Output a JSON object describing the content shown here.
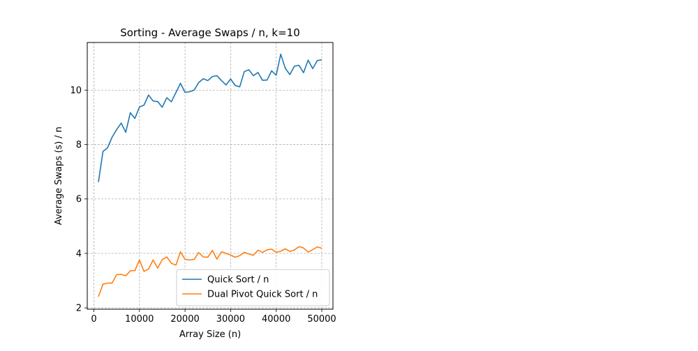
{
  "chart_data": {
    "type": "line",
    "title": "Sorting - Average Swaps / n, k=10",
    "xlabel": "Array Size (n)",
    "ylabel": "Average Swaps (s) / n",
    "xlim": [
      -1450,
      52450
    ],
    "ylim": [
      1.95,
      11.75
    ],
    "xticks": [
      0,
      10000,
      20000,
      30000,
      40000,
      50000
    ],
    "yticks": [
      2,
      4,
      6,
      8,
      10
    ],
    "grid": true,
    "legend_position": "lower right",
    "x": [
      1000,
      2000,
      3000,
      4000,
      5000,
      6000,
      7000,
      8000,
      9000,
      10000,
      11000,
      12000,
      13000,
      14000,
      15000,
      16000,
      17000,
      18000,
      19000,
      20000,
      21000,
      22000,
      23000,
      24000,
      25000,
      26000,
      27000,
      28000,
      29000,
      30000,
      31000,
      32000,
      33000,
      34000,
      35000,
      36000,
      37000,
      38000,
      39000,
      40000,
      41000,
      42000,
      43000,
      44000,
      45000,
      46000,
      47000,
      48000,
      49000,
      50000
    ],
    "series": [
      {
        "name": "Quick Sort / n",
        "color": "#1f77b4",
        "values": [
          6.62,
          7.75,
          7.88,
          8.27,
          8.55,
          8.79,
          8.45,
          9.17,
          8.96,
          9.38,
          9.45,
          9.82,
          9.6,
          9.58,
          9.37,
          9.72,
          9.57,
          9.91,
          10.25,
          9.92,
          9.94,
          10.0,
          10.28,
          10.42,
          10.35,
          10.5,
          10.53,
          10.35,
          10.19,
          10.41,
          10.17,
          10.12,
          10.68,
          10.75,
          10.53,
          10.65,
          10.36,
          10.37,
          10.71,
          10.55,
          11.32,
          10.8,
          10.57,
          10.88,
          10.91,
          10.64,
          11.1,
          10.79,
          11.08,
          11.12
        ]
      },
      {
        "name": "Dual Pivot Quick Sort / n",
        "color": "#ff7f0e",
        "values": [
          2.41,
          2.87,
          2.91,
          2.91,
          3.22,
          3.23,
          3.18,
          3.36,
          3.37,
          3.76,
          3.34,
          3.43,
          3.76,
          3.46,
          3.77,
          3.87,
          3.64,
          3.57,
          4.06,
          3.78,
          3.76,
          3.78,
          4.03,
          3.87,
          3.86,
          4.11,
          3.79,
          4.06,
          4.0,
          3.94,
          3.86,
          3.92,
          4.04,
          3.98,
          3.93,
          4.12,
          4.04,
          4.13,
          4.16,
          4.04,
          4.08,
          4.17,
          4.07,
          4.13,
          4.25,
          4.2,
          4.05,
          4.14,
          4.24,
          4.19
        ]
      }
    ]
  }
}
